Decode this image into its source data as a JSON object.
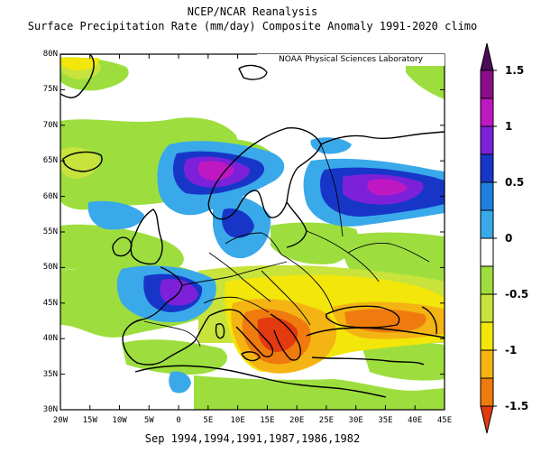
{
  "title": "NCEP/NCAR Reanalysis",
  "subtitle": "Surface Precipitation Rate (mm/day) Composite Anomaly 1991-2020 climo",
  "credit": "NOAA Physical Sciences Laboratory",
  "xlabel": "Sep 1994,1994,1991,1987,1986,1982",
  "lon_ticks": [
    "20W",
    "15W",
    "10W",
    "5W",
    "0",
    "5E",
    "10E",
    "15E",
    "20E",
    "25E",
    "30E",
    "35E",
    "40E",
    "45E"
  ],
  "lat_ticks": [
    "80N",
    "75N",
    "70N",
    "65N",
    "60N",
    "55N",
    "50N",
    "45N",
    "40N",
    "35N",
    "30N"
  ],
  "colorbar": {
    "labels": [
      "1.5",
      "1",
      "0.5",
      "0",
      "-0.5",
      "-1",
      "-1.5"
    ],
    "colors": [
      "#4b0d55",
      "#8a0e87",
      "#bf18c2",
      "#7d20d9",
      "#1736c8",
      "#1f7fe0",
      "#39a9ea",
      "#ffffff",
      "#9dde3e",
      "#c7e33c",
      "#f2e60a",
      "#f4b414",
      "#ef7b0e",
      "#e43a10"
    ]
  },
  "map_extent": {
    "lon": [
      -20,
      45
    ],
    "lat": [
      30,
      80
    ]
  }
}
